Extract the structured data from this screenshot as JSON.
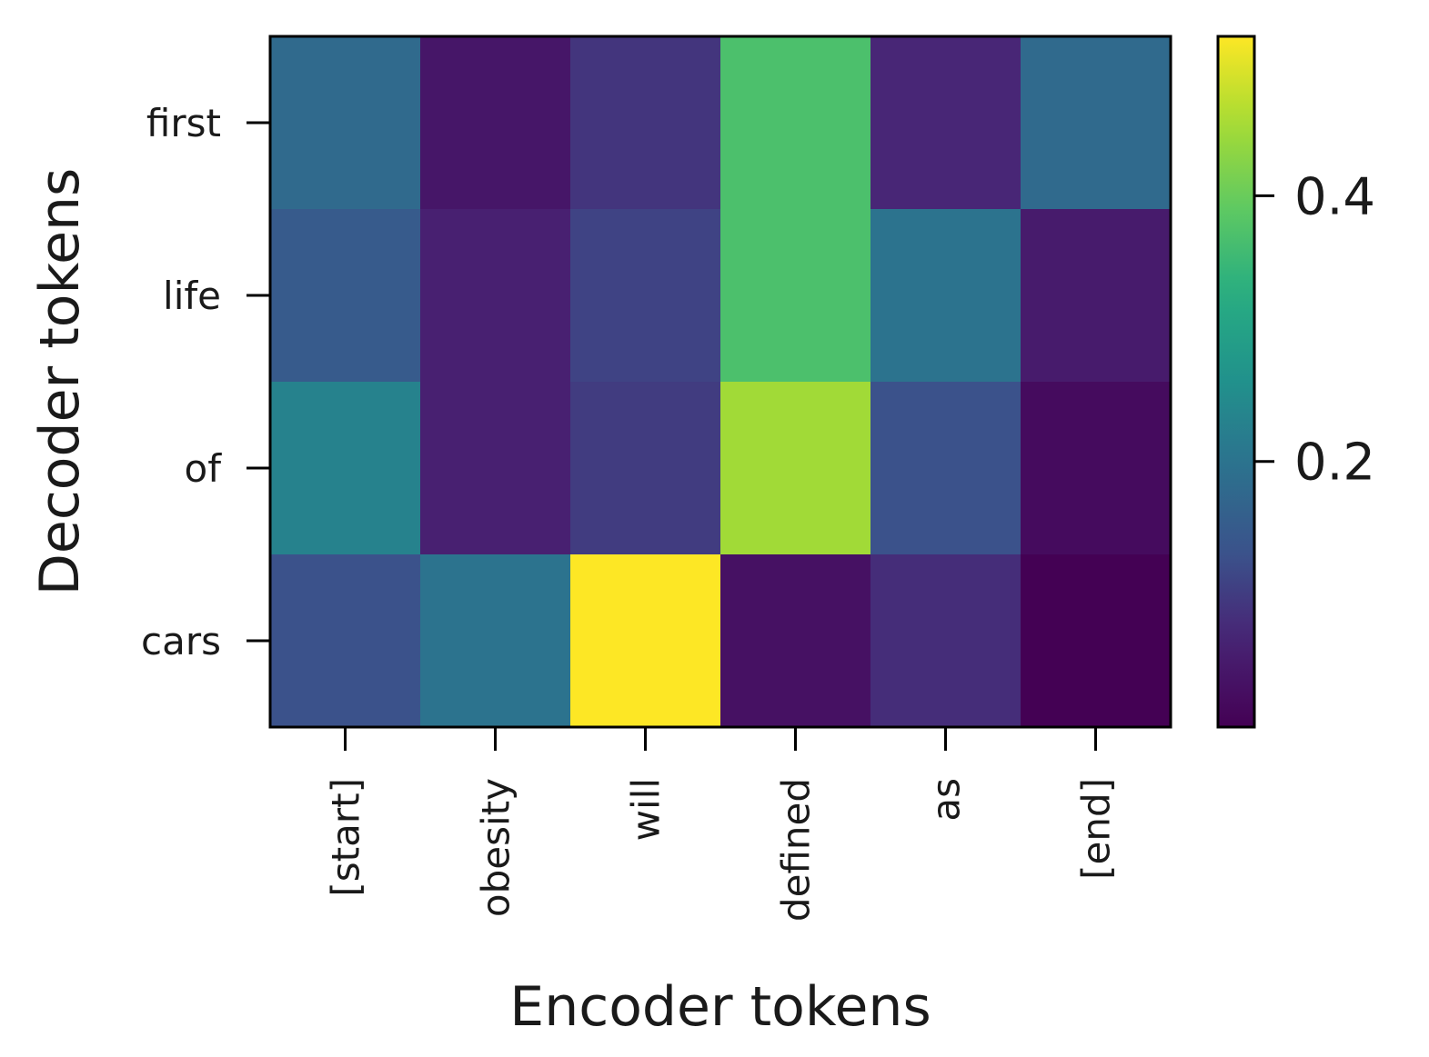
{
  "chart_data": {
    "type": "heatmap",
    "title": "",
    "xlabel": "Encoder tokens",
    "ylabel": "Decoder tokens",
    "x_categories": [
      "[start]",
      "obesity",
      "will",
      "defined",
      "as",
      "[end]"
    ],
    "y_categories": [
      "first",
      "life",
      "of",
      "cars"
    ],
    "values": [
      [
        0.18,
        0.04,
        0.09,
        0.37,
        0.07,
        0.18
      ],
      [
        0.15,
        0.06,
        0.11,
        0.37,
        0.2,
        0.05
      ],
      [
        0.23,
        0.06,
        0.1,
        0.45,
        0.13,
        0.02
      ],
      [
        0.13,
        0.2,
        0.52,
        0.03,
        0.08,
        0.0
      ]
    ],
    "colormap": "viridis",
    "vmin": 0.0,
    "vmax": 0.52,
    "colorbar": {
      "ticks": [
        0.2,
        0.4
      ],
      "tick_labels": [
        "0.2",
        "0.4"
      ]
    },
    "grid": false
  }
}
